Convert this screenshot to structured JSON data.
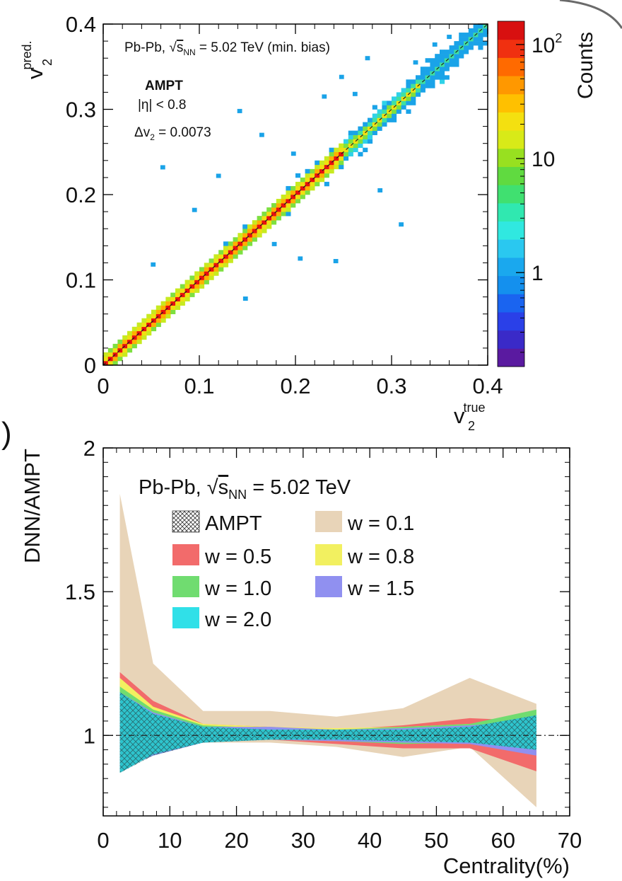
{
  "chart_data": [
    {
      "type": "heatmap",
      "title_line1_prefix": "Pb-Pb, ",
      "sqrt_symbol": "√",
      "s_label": "s",
      "s_sub": "NN",
      "title_line1_suffix": " = 5.02 TeV (min. bias)",
      "model_label": "AMPT",
      "eta_cut_label": "|η| < 0.8",
      "delta_prefix": "Δv",
      "delta_sub": "2",
      "delta_suffix": " = 0.0073",
      "xlabel_main": "v",
      "xlabel_sub": "2",
      "xlabel_sup": "true",
      "ylabel_main": "v",
      "ylabel_sub": "2",
      "ylabel_sup": "pred.",
      "xlim": [
        0,
        0.4
      ],
      "ylim": [
        0,
        0.4
      ],
      "x_ticks": [
        "0",
        "0.1",
        "0.2",
        "0.3",
        "0.4"
      ],
      "y_ticks": [
        "0",
        "0.1",
        "0.2",
        "0.3",
        "0.4"
      ],
      "colorbar_label": "Counts",
      "colorbar_ticks": [
        {
          "label": "1",
          "value": 1
        },
        {
          "label": "10",
          "value": 10
        },
        {
          "label": "10",
          "sup": "2",
          "value": 100
        }
      ],
      "colorbar_range": [
        0.15,
        160
      ],
      "colorbar_scale": "log",
      "reference_line": "y = x (dashed)",
      "density_description": "2D histogram concentrated along the diagonal",
      "outlier_points": [
        [
          0.062,
          0.232
        ],
        [
          0.142,
          0.298
        ],
        [
          0.248,
          0.338
        ],
        [
          0.262,
          0.318
        ],
        [
          0.288,
          0.205
        ],
        [
          0.31,
          0.165
        ],
        [
          0.165,
          0.27
        ],
        [
          0.205,
          0.125
        ],
        [
          0.242,
          0.122
        ],
        [
          0.36,
          0.385
        ],
        [
          0.345,
          0.376
        ],
        [
          0.325,
          0.355
        ],
        [
          0.12,
          0.222
        ],
        [
          0.178,
          0.142
        ],
        [
          0.198,
          0.248
        ],
        [
          0.052,
          0.118
        ],
        [
          0.148,
          0.078
        ],
        [
          0.095,
          0.182
        ],
        [
          0.275,
          0.36
        ],
        [
          0.23,
          0.315
        ]
      ],
      "bin_colors": [
        "#1aa3e8",
        "#2fd2e8",
        "#40e0a0",
        "#7de040",
        "#c8ea20",
        "#f0e010",
        "#ffb000",
        "#ff7a00",
        "#e81010"
      ]
    },
    {
      "type": "area",
      "title_prefix": "Pb-Pb, ",
      "sqrt_symbol": "√",
      "s_label": "s",
      "s_sub": "NN",
      "title_suffix": " = 5.02 TeV",
      "xlabel": "Centrality(%)",
      "ylabel": "DNN/AMPT",
      "xlim": [
        0,
        70
      ],
      "ylim": [
        0.72,
        2.0
      ],
      "x_ticks": [
        "0",
        "10",
        "20",
        "30",
        "40",
        "50",
        "60",
        "70"
      ],
      "y_ticks": [
        {
          "label": "1",
          "value": 1
        },
        {
          "label": "1.5",
          "value": 1.5
        },
        {
          "label": "2",
          "value": 2
        }
      ],
      "reference_line": 1.0,
      "x": [
        2.5,
        7.5,
        15,
        25,
        35,
        45,
        55,
        65
      ],
      "series": [
        {
          "name": "w = 0.1",
          "color": "#e8d4b8",
          "lower": [
            0.9,
            0.95,
            0.975,
            0.975,
            0.96,
            0.925,
            0.96,
            0.75
          ],
          "upper": [
            1.84,
            1.25,
            1.085,
            1.085,
            1.065,
            1.095,
            1.2,
            1.11
          ]
        },
        {
          "name": "w = 0.5",
          "color": "#f26b6b",
          "lower": [
            0.92,
            0.96,
            0.975,
            0.985,
            0.97,
            0.955,
            0.955,
            0.875
          ],
          "upper": [
            1.22,
            1.12,
            1.04,
            1.03,
            1.02,
            1.035,
            1.06,
            1.05
          ]
        },
        {
          "name": "w = 0.8",
          "color": "#f2f060",
          "lower": [
            0.93,
            0.96,
            0.98,
            0.985,
            0.98,
            0.975,
            0.975,
            0.96
          ],
          "upper": [
            1.2,
            1.1,
            1.04,
            1.03,
            1.025,
            1.03,
            1.04,
            1.06
          ]
        },
        {
          "name": "w = 1.0",
          "color": "#70dc70",
          "lower": [
            0.9,
            0.94,
            0.975,
            0.985,
            0.98,
            0.97,
            0.975,
            0.955
          ],
          "upper": [
            1.17,
            1.09,
            1.035,
            1.025,
            1.02,
            1.03,
            1.04,
            1.09
          ]
        },
        {
          "name": "w = 1.5",
          "color": "#9090f0",
          "lower": [
            0.88,
            0.93,
            0.975,
            0.985,
            0.98,
            0.975,
            0.97,
            0.93
          ],
          "upper": [
            1.15,
            1.08,
            1.03,
            1.03,
            1.02,
            1.025,
            1.035,
            1.05
          ]
        },
        {
          "name": "w = 2.0",
          "color": "#30e0e8",
          "lower": [
            0.87,
            0.935,
            0.975,
            0.985,
            0.985,
            0.98,
            0.975,
            0.95
          ],
          "upper": [
            1.15,
            1.075,
            1.03,
            1.02,
            1.02,
            1.02,
            1.03,
            1.07
          ]
        },
        {
          "name": "AMPT",
          "color": "#2a8e9a",
          "pattern": "crosshatch",
          "lower": [
            0.87,
            0.93,
            0.975,
            0.985,
            0.985,
            0.98,
            0.975,
            0.95
          ],
          "upper": [
            1.15,
            1.075,
            1.03,
            1.02,
            1.02,
            1.02,
            1.03,
            1.07
          ]
        }
      ],
      "legend": {
        "left": [
          {
            "label": "AMPT",
            "fill": "#ffffff",
            "pattern": "crosshatch"
          },
          {
            "label": "w = 0.5",
            "fill": "#f26b6b"
          },
          {
            "label": "w = 1.0",
            "fill": "#70dc70"
          },
          {
            "label": "w = 2.0",
            "fill": "#30e0e8"
          }
        ],
        "right": [
          {
            "label": "w = 0.1",
            "fill": "#e8d4b8"
          },
          {
            "label": "w = 0.8",
            "fill": "#f2f060"
          },
          {
            "label": "w = 1.5",
            "fill": "#9090f0"
          }
        ]
      }
    }
  ],
  "panel_label_fragment": ")"
}
